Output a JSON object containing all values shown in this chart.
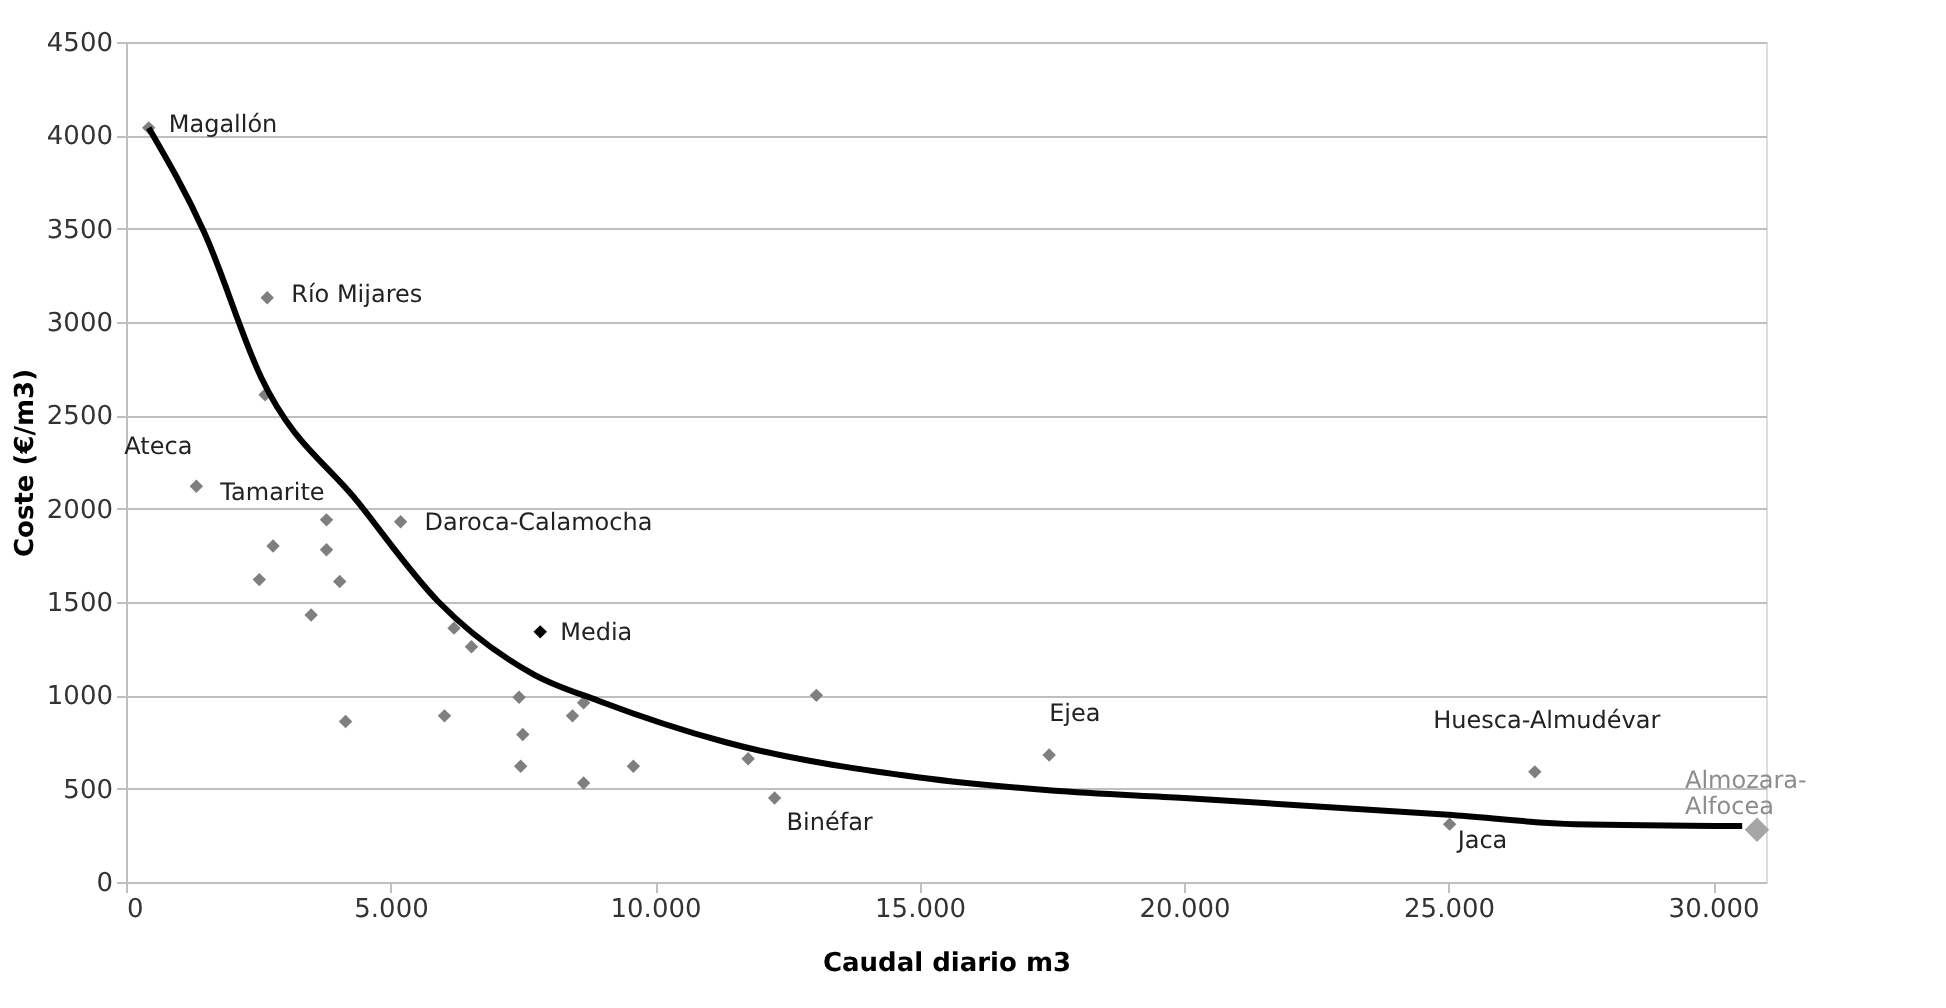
{
  "chart_data": {
    "type": "scatter",
    "xlabel": "Caudal diario m3",
    "ylabel": "Coste (€/m3)",
    "xlim": [
      0,
      31000
    ],
    "xticks": [
      {
        "value": 0,
        "label": "0"
      },
      {
        "value": 5000,
        "label": "5.000"
      },
      {
        "value": 10000,
        "label": "10.000"
      },
      {
        "value": 15000,
        "label": "15.000"
      },
      {
        "value": 20000,
        "label": "20.000"
      },
      {
        "value": 25000,
        "label": "25.000"
      },
      {
        "value": 30000,
        "label": "30.000"
      }
    ],
    "ylim": [
      0,
      4500
    ],
    "yticks": [
      0,
      500,
      1000,
      1500,
      2000,
      2500,
      3000,
      3500,
      4000,
      4500
    ],
    "grid": "y",
    "legend": false,
    "marker": "diamond",
    "series": [
      {
        "color": "#7f7f7f",
        "x": [
          430,
          2670,
          2630,
          1330,
          3790,
          2780,
          3790,
          2520,
          4040,
          3500,
          4150,
          5190,
          6200,
          6530,
          6020,
          7430,
          7500,
          7460,
          8440,
          8650,
          8650,
          9590,
          11760,
          12260,
          13050,
          17450,
          26630,
          25020
        ],
        "values": [
          4040,
          3130,
          2610,
          2120,
          1940,
          1800,
          1780,
          1620,
          1610,
          1430,
          860,
          1930,
          1360,
          1260,
          890,
          990,
          790,
          620,
          890,
          960,
          530,
          620,
          660,
          450,
          1000,
          680,
          590,
          310
        ]
      },
      {
        "color": "#000000",
        "x": [
          7830
        ],
        "values": [
          1340
        ]
      },
      {
        "color": "#a6a6a6",
        "x": [
          30830
        ],
        "values": [
          280
        ]
      },
      {
        "type": "line",
        "color": "#000000",
        "marker": "none",
        "x": [
          430,
          1480,
          2560,
          4400,
          5910,
          7720,
          8940,
          11320,
          15000,
          17500,
          20000,
          25000,
          27400,
          30550
        ],
        "values": [
          4040,
          3480,
          2700,
          2030,
          1500,
          1110,
          970,
          750,
          560,
          490,
          450,
          360,
          310,
          300
        ]
      }
    ],
    "annotations": [
      {
        "text": "Magallón",
        "x": 430,
        "y": 4040
      },
      {
        "text": "Río Mijares",
        "x": 2670,
        "y": 3130
      },
      {
        "text": "Ateca",
        "x": 1330,
        "y": 2120
      },
      {
        "text": "Tamarite",
        "x": 1330,
        "y": 2120
      },
      {
        "text": "Daroca-Calamocha",
        "x": 5190,
        "y": 1930
      },
      {
        "text": "Media",
        "x": 7830,
        "y": 1340
      },
      {
        "text": "Binéfar",
        "x": 12260,
        "y": 450
      },
      {
        "text": "Ejea",
        "x": 17450,
        "y": 680
      },
      {
        "text": "Huesca-Almudévar",
        "x": 26630,
        "y": 590
      },
      {
        "text": "Jaca",
        "x": 25020,
        "y": 310
      },
      {
        "text": "Almozara-Alfocea",
        "x": 30830,
        "y": 280
      }
    ]
  }
}
